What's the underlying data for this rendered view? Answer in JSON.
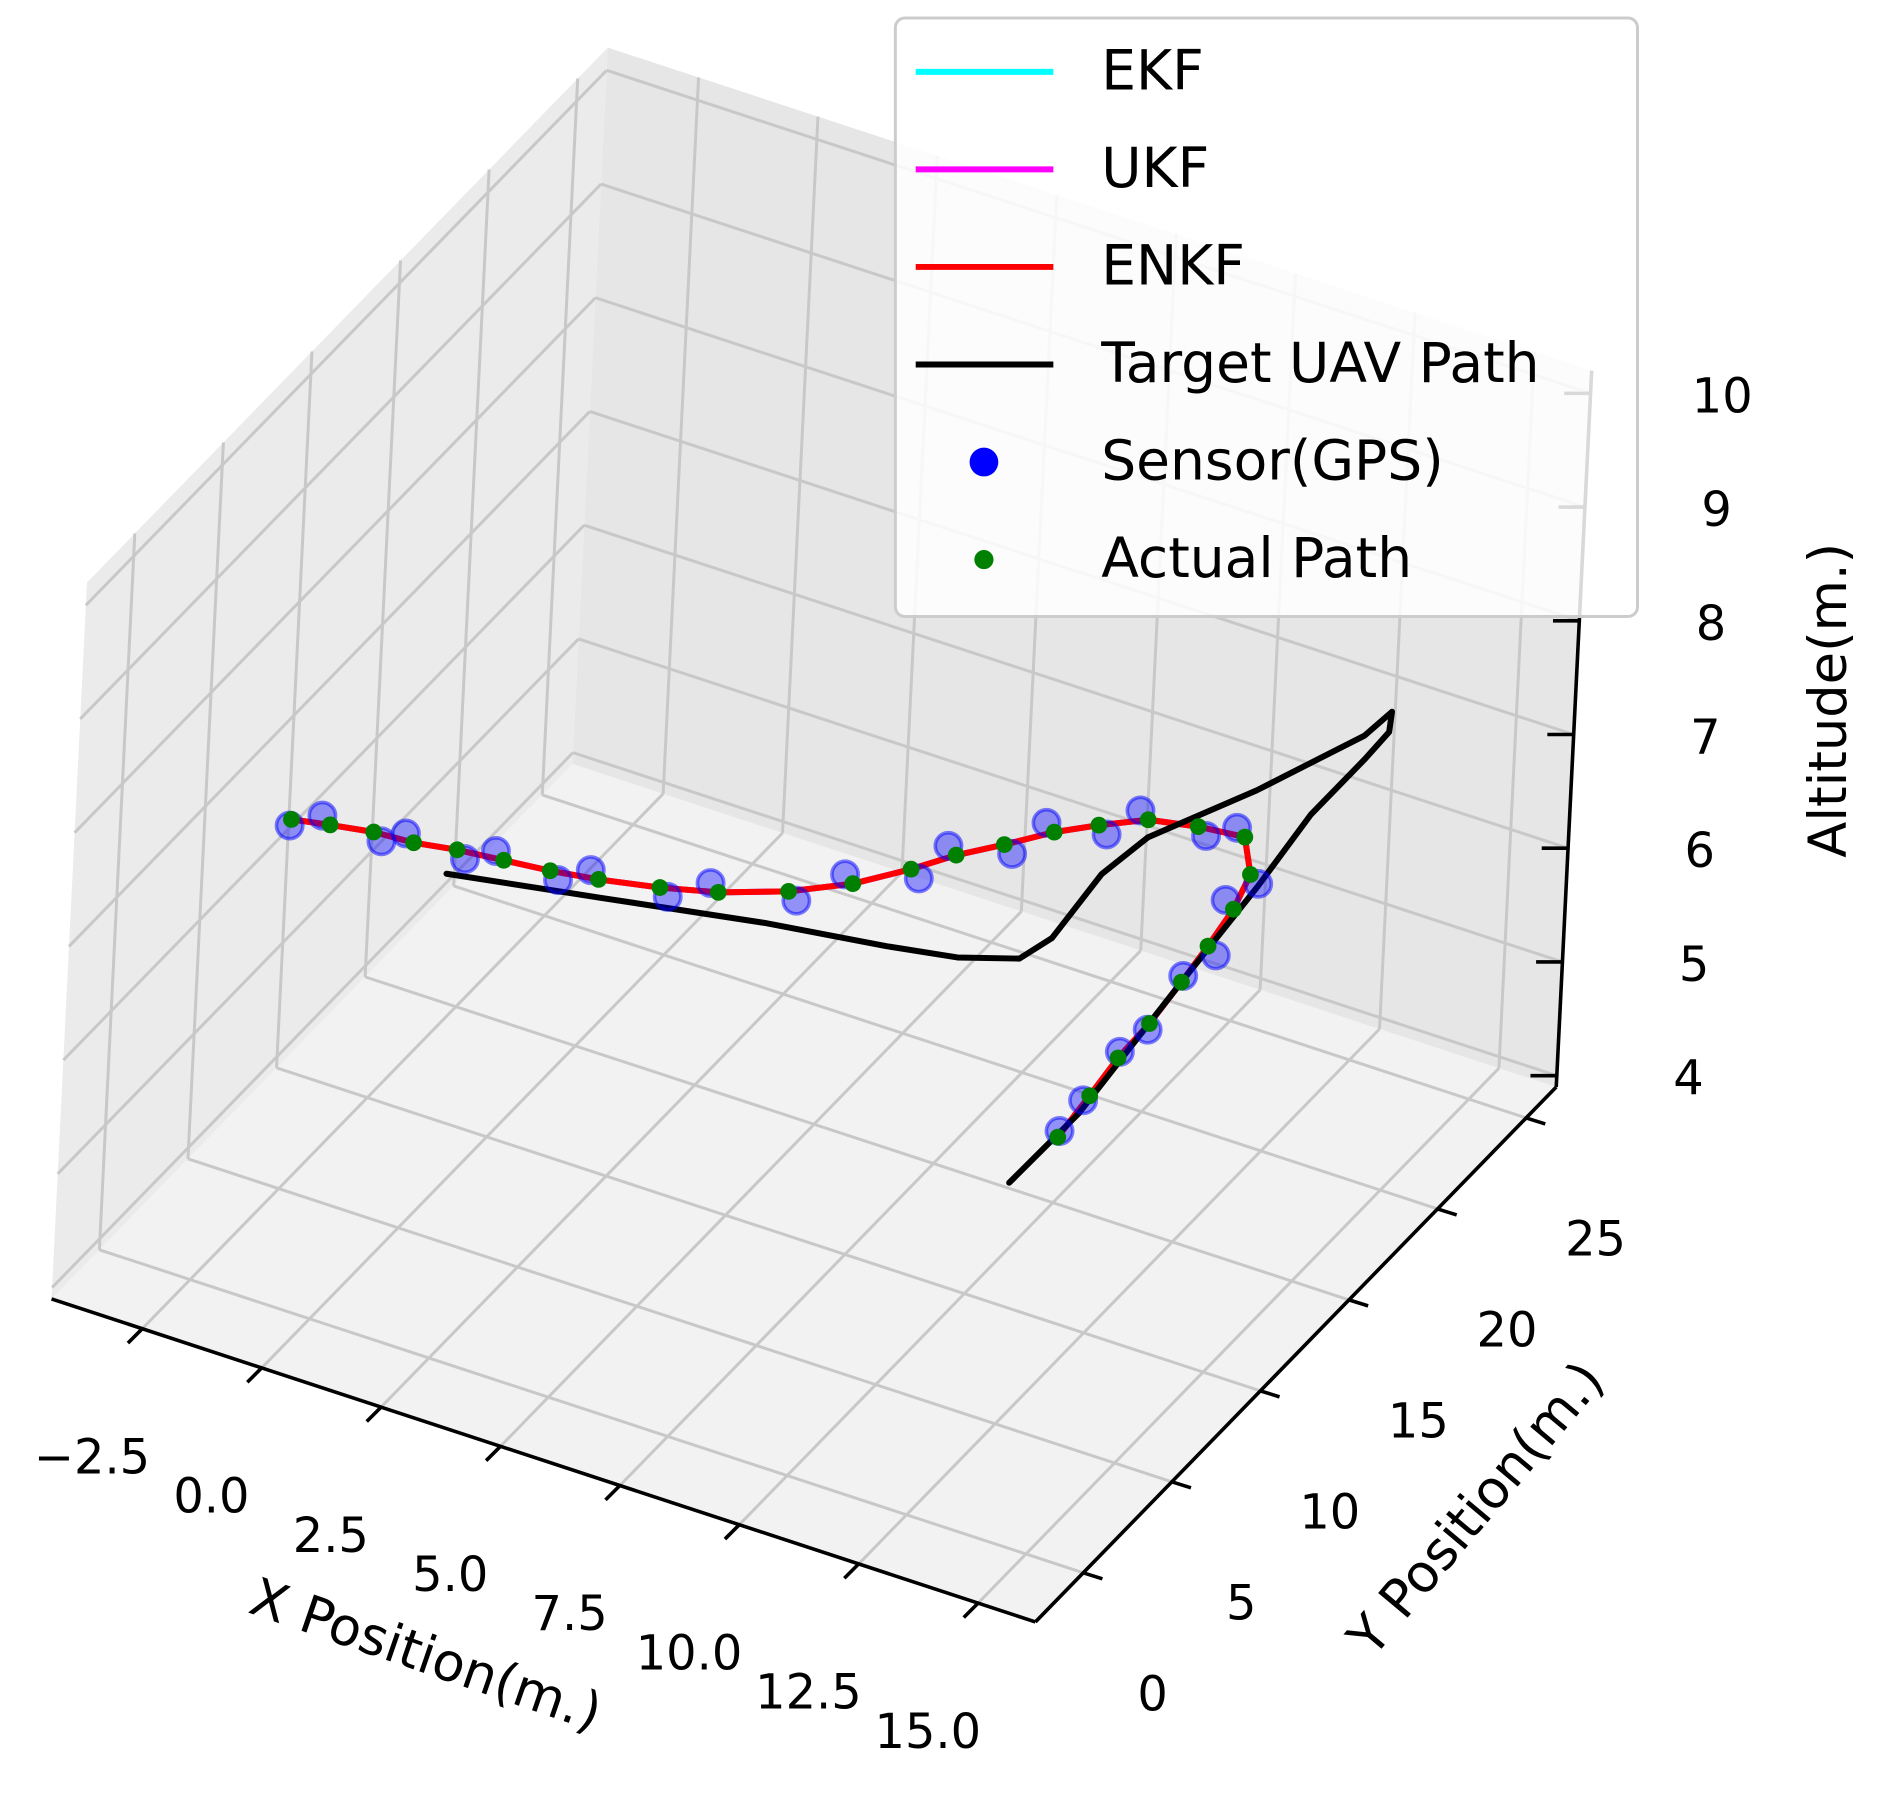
{
  "chart_data": {
    "type": "line3d",
    "xlabel": "X Position(m.)",
    "ylabel": "Y Position(m.)",
    "zlabel": "Altitude(m.)",
    "xlim": [
      -4.4,
      16.2
    ],
    "ylim": [
      -2.7,
      26.7
    ],
    "zlim": [
      3.9,
      10.2
    ],
    "xticks": [
      {
        "value": -2.5,
        "label": "−2.5"
      },
      {
        "value": 0,
        "label": "0.0"
      },
      2.5,
      {
        "value": 5,
        "label": "5.0"
      },
      7.5,
      {
        "value": 10,
        "label": "10.0"
      },
      12.5,
      {
        "value": 15,
        "label": "15.0"
      }
    ],
    "yticks": [
      0,
      5,
      10,
      15,
      20,
      25
    ],
    "zticks": [
      4,
      5,
      6,
      7,
      8,
      9,
      10
    ],
    "grid": true,
    "legend": "upper right",
    "series": [
      {
        "name": "EKF",
        "color": "#00ffff",
        "type": "line",
        "x": [
          10.9,
          11.1,
          11.3,
          11.6,
          11.8,
          12.0,
          12.0,
          11.9,
          11.4,
          10.5,
          9.6,
          8.9,
          8.3,
          7.7,
          7.1,
          6.6,
          5.9,
          5.0,
          3.9,
          2.9,
          1.8,
          0.9,
          0.0,
          -0.9,
          -1.7,
          -2.5,
          -3.3,
          -4.0
        ],
        "y": [
          12.5,
          13.7,
          14.7,
          15.6,
          16.8,
          17.7,
          19.1,
          20.3,
          21.3,
          21.1,
          20.7,
          19.8,
          18.9,
          17.7,
          16.6,
          15.4,
          14.0,
          12.8,
          11.8,
          11.2,
          10.7,
          10.4,
          10.2,
          10.0,
          9.7,
          9.6,
          9.3,
          9.0
        ],
        "z": [
          5.0,
          5.2,
          5.4,
          5.6,
          5.8,
          6.0,
          6.1,
          6.2,
          6.3,
          6.3,
          6.3,
          6.3,
          6.3,
          6.3,
          6.3,
          6.3,
          6.3,
          6.3,
          6.3,
          6.3,
          6.3,
          6.3,
          6.3,
          6.3,
          6.3,
          6.3,
          6.3,
          6.3
        ]
      },
      {
        "name": "UKF",
        "color": "#ff00ff",
        "type": "line",
        "x": [
          10.9,
          11.1,
          11.3,
          11.6,
          11.8,
          12.0,
          12.0,
          11.9,
          11.4,
          10.5,
          9.6,
          8.9,
          8.3,
          7.7,
          7.1,
          6.6,
          5.9,
          5.0,
          3.9,
          2.9,
          1.8,
          0.9,
          0.0,
          -0.9,
          -1.7,
          -2.5,
          -3.3,
          -4.0
        ],
        "y": [
          12.5,
          13.7,
          14.7,
          15.6,
          16.8,
          17.7,
          19.1,
          20.3,
          21.3,
          21.1,
          20.7,
          19.8,
          18.9,
          17.7,
          16.6,
          15.4,
          14.0,
          12.8,
          11.8,
          11.2,
          10.7,
          10.4,
          10.2,
          10.0,
          9.7,
          9.6,
          9.3,
          9.0
        ],
        "z": [
          5.0,
          5.2,
          5.4,
          5.6,
          5.8,
          6.0,
          6.1,
          6.2,
          6.3,
          6.3,
          6.3,
          6.3,
          6.3,
          6.3,
          6.3,
          6.3,
          6.3,
          6.3,
          6.3,
          6.3,
          6.3,
          6.3,
          6.3,
          6.3,
          6.3,
          6.3,
          6.3,
          6.3
        ]
      },
      {
        "name": "ENKF",
        "color": "#ff0000",
        "type": "line",
        "x": [
          10.9,
          11.1,
          11.3,
          11.6,
          11.8,
          12.0,
          12.0,
          11.9,
          11.4,
          10.5,
          9.6,
          8.9,
          8.3,
          7.7,
          7.1,
          6.6,
          5.9,
          5.0,
          3.9,
          2.9,
          1.8,
          0.9,
          0.0,
          -0.9,
          -1.7,
          -2.5,
          -3.3,
          -4.0
        ],
        "y": [
          12.5,
          13.7,
          14.7,
          15.6,
          16.8,
          17.7,
          19.1,
          20.3,
          21.3,
          21.1,
          20.7,
          19.8,
          18.9,
          17.7,
          16.6,
          15.4,
          14.0,
          12.8,
          11.8,
          11.2,
          10.7,
          10.4,
          10.2,
          10.0,
          9.7,
          9.6,
          9.3,
          9.0
        ],
        "z": [
          5.0,
          5.2,
          5.4,
          5.6,
          5.8,
          6.0,
          6.1,
          6.2,
          6.3,
          6.3,
          6.3,
          6.3,
          6.3,
          6.3,
          6.3,
          6.3,
          6.3,
          6.3,
          6.3,
          6.3,
          6.3,
          6.3,
          6.3,
          6.3,
          6.3,
          6.3,
          6.3,
          6.3
        ]
      },
      {
        "name": "Target UAV Path",
        "color": "#000000",
        "type": "line",
        "x": [
          -1.2,
          1.6,
          4.6,
          6.9,
          8.2,
          9.2,
          9.4,
          9.7,
          10.2,
          11.7,
          12.9,
          13.3,
          13.4,
          13.1,
          12.6,
          12.2,
          11.8,
          11.2,
          10.5
        ],
        "y": [
          10.3,
          11.4,
          12.6,
          13.3,
          13.8,
          14.6,
          15.9,
          17.8,
          19.0,
          21.0,
          23.8,
          24.2,
          23.8,
          23.3,
          21.7,
          19.9,
          16.8,
          12.8,
          10.9
        ],
        "z": [
          6.0,
          6.0,
          6.0,
          6.0,
          6.0,
          6.0,
          6.0,
          6.3,
          6.5,
          6.8,
          7.0,
          7.2,
          7.1,
          6.9,
          6.6,
          6.2,
          5.8,
          5.2,
          4.8
        ]
      },
      {
        "name": "Sensor(GPS)",
        "color": "#0000ff",
        "type": "scatter",
        "x": [
          11.0,
          10.9,
          11.4,
          11.5,
          11.9,
          12.1,
          11.9,
          12.0,
          11.3,
          10.6,
          9.5,
          9.0,
          8.2,
          7.8,
          7.0,
          6.7,
          5.8,
          5.1,
          3.8,
          3.0,
          1.7,
          1.0,
          -0.1,
          -0.8,
          -1.8,
          -2.4,
          -3.4,
          -4.1
        ],
        "y": [
          12.3,
          13.9,
          14.5,
          15.8,
          16.6,
          17.9,
          18.9,
          20.5,
          21.1,
          21.3,
          20.5,
          20.0,
          18.7,
          17.9,
          16.4,
          15.6,
          13.8,
          13.0,
          11.6,
          11.4,
          10.5,
          10.6,
          10.0,
          10.2,
          9.5,
          9.8,
          9.1,
          9.2
        ],
        "z": [
          5.1,
          5.1,
          5.5,
          5.5,
          5.9,
          5.9,
          6.2,
          6.1,
          6.4,
          6.2,
          6.4,
          6.2,
          6.4,
          6.2,
          6.4,
          6.2,
          6.4,
          6.2,
          6.4,
          6.2,
          6.4,
          6.2,
          6.4,
          6.2,
          6.4,
          6.2,
          6.4,
          6.2
        ]
      },
      {
        "name": "Actual Path",
        "color": "#008000",
        "type": "scatter",
        "x": [
          10.9,
          11.1,
          11.3,
          11.6,
          11.8,
          12.0,
          12.0,
          11.9,
          11.4,
          10.5,
          9.6,
          8.9,
          8.3,
          7.7,
          7.1,
          6.6,
          5.9,
          5.0,
          3.9,
          2.9,
          1.8,
          0.9,
          0.0,
          -0.9,
          -1.7,
          -2.5,
          -3.3,
          -4.0
        ],
        "y": [
          12.5,
          13.7,
          14.7,
          15.6,
          16.8,
          17.7,
          19.1,
          20.3,
          21.3,
          21.1,
          20.7,
          19.8,
          18.9,
          17.7,
          16.6,
          15.4,
          14.0,
          12.8,
          11.8,
          11.2,
          10.7,
          10.4,
          10.2,
          10.0,
          9.7,
          9.6,
          9.3,
          9.0
        ],
        "z": [
          5.0,
          5.2,
          5.4,
          5.6,
          5.8,
          6.0,
          6.1,
          6.2,
          6.3,
          6.3,
          6.3,
          6.3,
          6.3,
          6.3,
          6.3,
          6.3,
          6.3,
          6.3,
          6.3,
          6.3,
          6.3,
          6.3,
          6.3,
          6.3,
          6.3,
          6.3,
          6.3,
          6.3
        ]
      }
    ]
  }
}
